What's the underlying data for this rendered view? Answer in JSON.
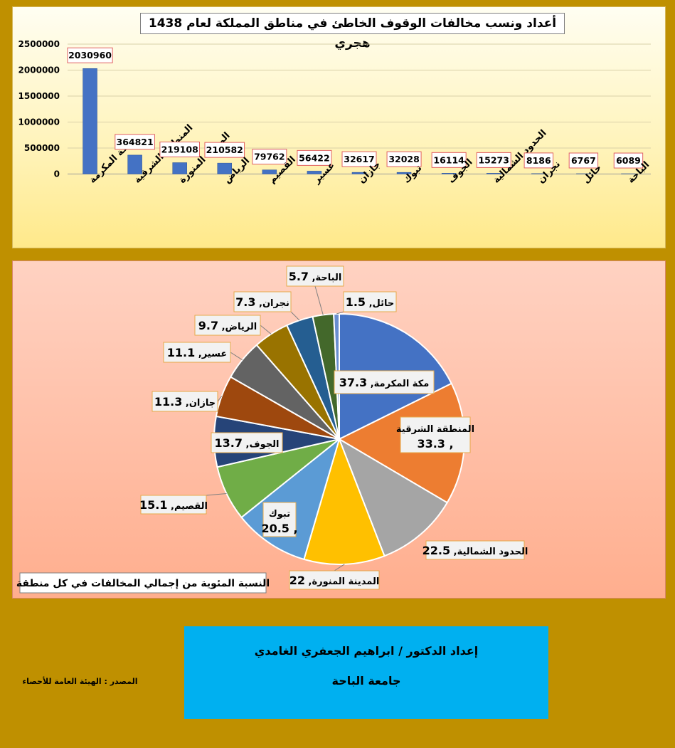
{
  "header": {
    "title": "أعداد ونسب مخالفات الوقوف الخاطئ في مناطق المملكة لعام 1438 هجري"
  },
  "pie_caption": "النسبة المئوية من إجمالي المخالفات في كل منطقة",
  "credit": {
    "author": "إعداد الدكتور / ابراهيم الجعفري الغامدي",
    "university": "جامعة الباحة"
  },
  "source": "المصدر : الهيئة العامة للأحصاء",
  "colors": {
    "bar": "#4472c4",
    "background": "#bf9000",
    "credit_box": "#00b0f0"
  },
  "chart_data": [
    {
      "type": "bar",
      "title": "أعداد ونسب مخالفات الوقوف الخاطئ في مناطق المملكة لعام 1438 هجري",
      "categories": [
        "مكة المكرمة",
        "المنطقة الشرقية",
        "المدينة المنورة",
        "الرياض",
        "القصيم",
        "عسير",
        "جازان",
        "تبوك",
        "الجوف",
        "الحدود الشمالية",
        "نجران",
        "حائل",
        "الباحة"
      ],
      "values": [
        2030960,
        364821,
        219108,
        210582,
        79762,
        56422,
        32617,
        32028,
        16114,
        15273,
        8186,
        6767,
        6089
      ],
      "yticks": [
        0,
        500000,
        1000000,
        1500000,
        2000000,
        2500000
      ],
      "ylim": [
        0,
        2500000
      ],
      "grid": true,
      "data_labels": true
    },
    {
      "type": "pie",
      "title": "النسبة المئوية من إجمالي المخالفات في كل منطقة",
      "slices": [
        {
          "label": "مكة المكرمة",
          "value": 37.3,
          "color": "#4472c4"
        },
        {
          "label": "المنطقة الشرقية",
          "value": 33.3,
          "color": "#ed7d31"
        },
        {
          "label": "الحدود الشمالية",
          "value": 22.5,
          "color": "#a5a5a5"
        },
        {
          "label": "المدينة المنورة",
          "value": 22,
          "color": "#ffc000"
        },
        {
          "label": "تبوك",
          "value": 20.5,
          "color": "#5b9bd5"
        },
        {
          "label": "القصيم",
          "value": 15.1,
          "color": "#70ad47"
        },
        {
          "label": "الجوف",
          "value": 13.7,
          "color": "#264478"
        },
        {
          "label": "جازان",
          "value": 11.3,
          "color": "#9e480e"
        },
        {
          "label": "عسير",
          "value": 11.1,
          "color": "#636363"
        },
        {
          "label": "الرياض",
          "value": 9.7,
          "color": "#997300"
        },
        {
          "label": "نجران",
          "value": 7.3,
          "color": "#255e91"
        },
        {
          "label": "الباحة",
          "value": 5.7,
          "color": "#43682b"
        },
        {
          "label": "حائل",
          "value": 1.5,
          "color": "#698ed0"
        }
      ]
    }
  ]
}
